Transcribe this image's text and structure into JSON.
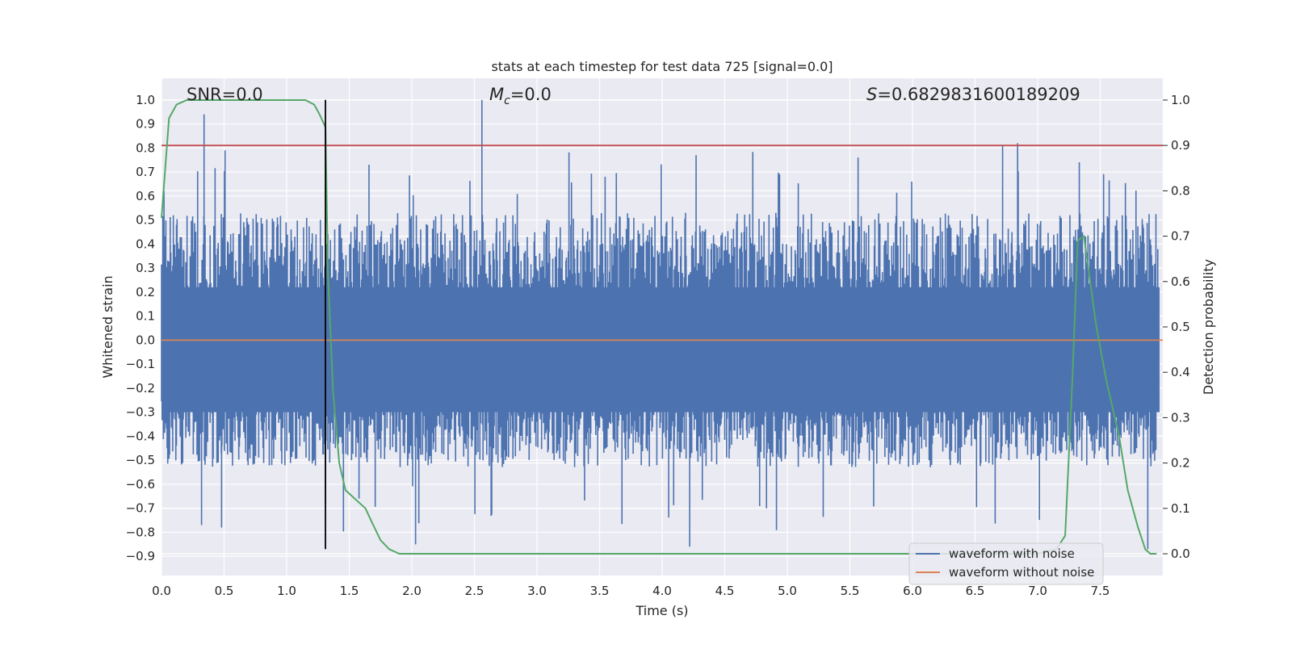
{
  "chart_data": {
    "type": "line",
    "title": "stats at each timestep for test data 725 [signal=0.0]",
    "xlabel": "Time (s)",
    "ylabel": "Whitened strain",
    "y2label": "Detection probability",
    "xlim": [
      0.0,
      8.0
    ],
    "ylim": [
      -0.98,
      1.09
    ],
    "y2lim": [
      -0.048,
      1.048
    ],
    "x_ticks": [
      "0.0",
      "0.5",
      "1.0",
      "1.5",
      "2.0",
      "2.5",
      "3.0",
      "3.5",
      "4.0",
      "4.5",
      "5.0",
      "5.5",
      "6.0",
      "6.5",
      "7.0",
      "7.5"
    ],
    "y_ticks": [
      "1.0",
      "0.9",
      "0.8",
      "0.7",
      "0.6",
      "0.5",
      "0.4",
      "0.3",
      "0.2",
      "0.1",
      "0.0",
      "-0.1",
      "-0.2",
      "-0.3",
      "-0.4",
      "-0.5",
      "-0.6",
      "-0.7",
      "-0.8",
      "-0.9"
    ],
    "y2_ticks": [
      "1.0",
      "0.9",
      "0.8",
      "0.7",
      "0.6",
      "0.5",
      "0.4",
      "0.3",
      "0.2",
      "0.1",
      "0.0"
    ],
    "annotations": {
      "snr": "SNR=0.0",
      "mc_symbol": "M",
      "mc_sub": "c",
      "mc_value": "=0.0",
      "s_symbol": "S",
      "s_value": "=0.6829831600189209"
    },
    "legend": {
      "placement": "lower right",
      "entries": [
        "waveform with noise",
        "waveform without noise"
      ]
    },
    "colors": {
      "noise": "#4c72b0",
      "clean": "#dd8452",
      "probability": "#55a868",
      "threshold": "#c44e52",
      "marker": "#000000",
      "background": "#eaeaf2",
      "grid": "#ffffff"
    },
    "series": [
      {
        "name": "waveform with noise",
        "axis": "left",
        "envelope_min": -0.87,
        "envelope_max": 1.0
      },
      {
        "name": "waveform without noise",
        "axis": "left",
        "x": [
          0.0,
          8.0
        ],
        "y": [
          0.0,
          0.0
        ]
      },
      {
        "axis": "right",
        "x": [
          0.0,
          0.06,
          0.12,
          0.2,
          0.4,
          0.6,
          0.8,
          1.0,
          1.15,
          1.22,
          1.26,
          1.31,
          1.33,
          1.37,
          1.42,
          1.47,
          1.55,
          1.63,
          1.68,
          1.75,
          1.82,
          1.9,
          2.2,
          3.0,
          4.0,
          5.0,
          6.0,
          6.5,
          7.0,
          7.15,
          7.22,
          7.28,
          7.32,
          7.37,
          7.42,
          7.47,
          7.55,
          7.65,
          7.72,
          7.8,
          7.86,
          7.9,
          7.95
        ],
        "y": [
          0.74,
          0.96,
          0.99,
          1.0,
          1.0,
          1.0,
          1.0,
          1.0,
          1.0,
          0.99,
          0.97,
          0.94,
          0.62,
          0.36,
          0.2,
          0.14,
          0.12,
          0.1,
          0.07,
          0.03,
          0.01,
          0.0,
          0.0,
          0.0,
          0.0,
          0.0,
          0.0,
          0.0,
          0.0,
          0.01,
          0.04,
          0.4,
          0.69,
          0.7,
          0.6,
          0.5,
          0.38,
          0.26,
          0.14,
          0.06,
          0.01,
          0.0,
          0.0
        ]
      },
      {
        "axis": "right",
        "x": [
          0.0,
          8.0
        ],
        "y": [
          0.9,
          0.9
        ]
      },
      {
        "axis": "left",
        "x": [
          1.31,
          1.31
        ],
        "y": [
          1.0,
          -0.87
        ]
      }
    ]
  }
}
